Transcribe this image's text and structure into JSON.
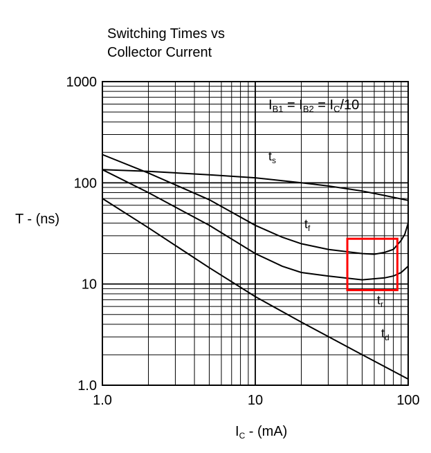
{
  "chart_data": {
    "type": "line",
    "title_lines": [
      "Switching Times vs",
      "Collector Current"
    ],
    "xlabel": {
      "main": "I",
      "sub": "C",
      "rest": " - (mA)"
    },
    "ylabel": "T - (ns)",
    "xscale": "log",
    "yscale": "log",
    "xlim": [
      1,
      100
    ],
    "ylim": [
      1,
      1000
    ],
    "grid": true,
    "x_ticks": [
      {
        "value": 1,
        "label": "1.0"
      },
      {
        "value": 10,
        "label": "10"
      },
      {
        "value": 100,
        "label": "100"
      }
    ],
    "y_ticks": [
      {
        "value": 1,
        "label": "1.0"
      },
      {
        "value": 10,
        "label": "10"
      },
      {
        "value": 100,
        "label": "100"
      },
      {
        "value": 1000,
        "label": "1000"
      }
    ],
    "annotation": {
      "parts": [
        {
          "main": "I",
          "sub": "B1"
        },
        {
          "main": " = I",
          "sub": "B2"
        },
        {
          "main": " = I",
          "sub": "C"
        },
        {
          "main": "/10",
          "sub": ""
        }
      ]
    },
    "series": [
      {
        "label_main": "t",
        "label_sub": "s",
        "points": [
          [
            1,
            135
          ],
          [
            2,
            130
          ],
          [
            5,
            120
          ],
          [
            10,
            112
          ],
          [
            20,
            100
          ],
          [
            30,
            93
          ],
          [
            50,
            83
          ],
          [
            70,
            75
          ],
          [
            100,
            67
          ]
        ]
      },
      {
        "label_main": "t",
        "label_sub": "f",
        "points": [
          [
            1,
            190
          ],
          [
            2,
            125
          ],
          [
            5,
            68
          ],
          [
            10,
            38
          ],
          [
            15,
            29
          ],
          [
            20,
            25
          ],
          [
            30,
            22
          ],
          [
            50,
            20
          ],
          [
            60,
            19.7
          ],
          [
            70,
            20.5
          ],
          [
            80,
            22
          ],
          [
            90,
            27
          ],
          [
            95,
            31
          ],
          [
            100,
            40
          ]
        ]
      },
      {
        "label_main": "t",
        "label_sub": "r",
        "points": [
          [
            1,
            135
          ],
          [
            2,
            80
          ],
          [
            5,
            38
          ],
          [
            10,
            20
          ],
          [
            15,
            15
          ],
          [
            20,
            13
          ],
          [
            30,
            12
          ],
          [
            50,
            11
          ],
          [
            70,
            11.5
          ],
          [
            80,
            12
          ],
          [
            90,
            13
          ],
          [
            100,
            15
          ]
        ]
      },
      {
        "label_main": "t",
        "label_sub": "d",
        "points": [
          [
            1,
            70
          ],
          [
            2,
            36
          ],
          [
            5,
            14.5
          ],
          [
            10,
            7.5
          ],
          [
            20,
            4.2
          ],
          [
            50,
            2
          ],
          [
            100,
            1.15
          ]
        ]
      }
    ],
    "highlight_box": {
      "x_range": [
        40,
        85
      ],
      "y_range": [
        8.7,
        28
      ],
      "color": "#ff0000"
    }
  }
}
